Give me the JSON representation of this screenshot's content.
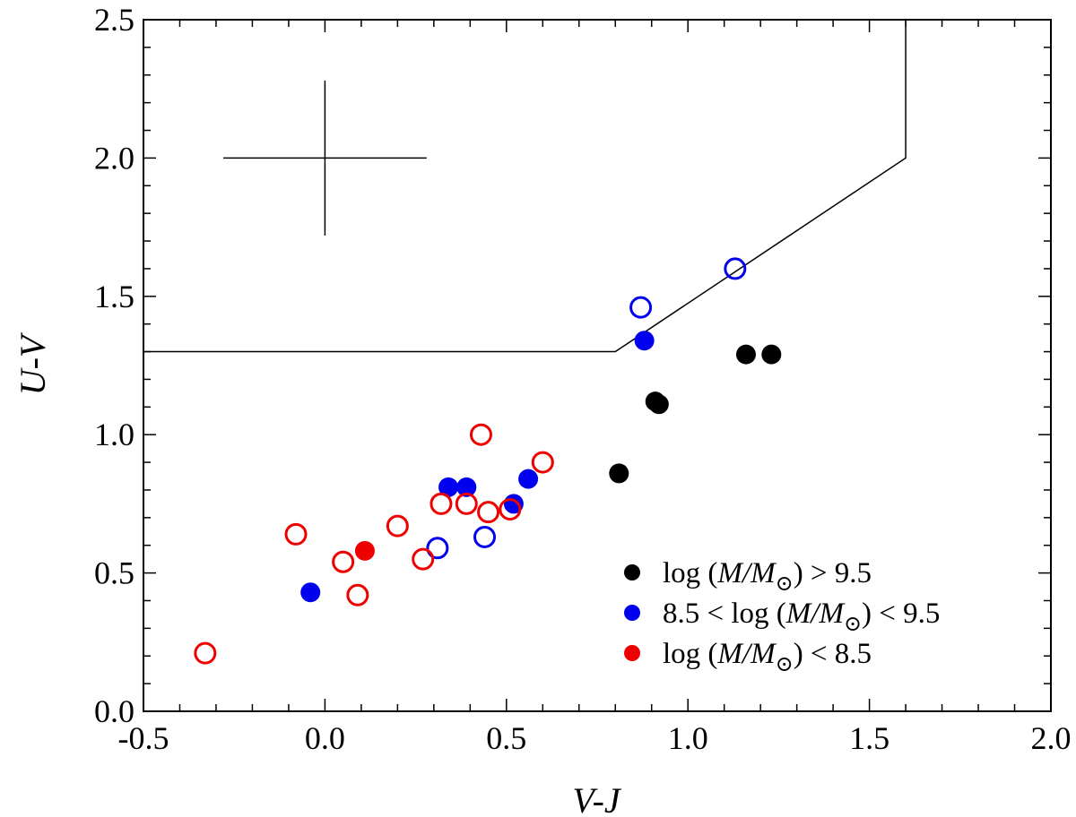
{
  "chart_data": {
    "type": "scatter",
    "xlabel": "V-J",
    "ylabel": "U-V",
    "xlim": [
      -0.5,
      2.0
    ],
    "ylim": [
      0.0,
      2.5
    ],
    "x_ticks": [
      "-0.5",
      "0.0",
      "0.5",
      "1.0",
      "1.5",
      "2.0"
    ],
    "y_ticks": [
      "0.0",
      "0.5",
      "1.0",
      "1.5",
      "2.0",
      "2.5"
    ],
    "colors": {
      "high": "#000000",
      "mid": "#0000ee",
      "low": "#ee0000"
    },
    "series": [
      {
        "name": "log (M/M_sun) > 9.5",
        "color_key": "high",
        "filled": [
          [
            0.81,
            0.86
          ],
          [
            0.91,
            1.12
          ],
          [
            0.92,
            1.11
          ],
          [
            1.16,
            1.29
          ],
          [
            1.23,
            1.29
          ]
        ],
        "open": []
      },
      {
        "name": "8.5 < log (M/M_sun) < 9.5",
        "color_key": "mid",
        "filled": [
          [
            -0.04,
            0.43
          ],
          [
            0.34,
            0.81
          ],
          [
            0.39,
            0.81
          ],
          [
            0.52,
            0.75
          ],
          [
            0.56,
            0.84
          ],
          [
            0.88,
            1.34
          ]
        ],
        "open": [
          [
            0.31,
            0.59
          ],
          [
            0.44,
            0.63
          ],
          [
            0.87,
            1.46
          ],
          [
            1.13,
            1.6
          ]
        ]
      },
      {
        "name": "log (M/M_sun) < 8.5",
        "color_key": "low",
        "filled": [
          [
            0.11,
            0.58
          ]
        ],
        "open": [
          [
            -0.33,
            0.21
          ],
          [
            -0.08,
            0.64
          ],
          [
            0.05,
            0.54
          ],
          [
            0.09,
            0.42
          ],
          [
            0.2,
            0.67
          ],
          [
            0.27,
            0.55
          ],
          [
            0.32,
            0.75
          ],
          [
            0.39,
            0.75
          ],
          [
            0.43,
            1.0
          ],
          [
            0.45,
            0.72
          ],
          [
            0.51,
            0.73
          ],
          [
            0.6,
            0.9
          ]
        ]
      }
    ],
    "selection_boundary": [
      [
        -0.5,
        1.3
      ],
      [
        0.8,
        1.3
      ],
      [
        1.6,
        2.0
      ],
      [
        1.6,
        2.5
      ]
    ],
    "error_bar": {
      "x": 0.0,
      "y": 2.0,
      "xerr": 0.28,
      "yerr": 0.28
    },
    "legend": {
      "location": "lower-right",
      "entries": [
        {
          "color_key": "high",
          "prefix": "log (",
          "var": "M/M",
          "suffix": ") > 9.5"
        },
        {
          "color_key": "mid",
          "prefix": "8.5 < log (",
          "var": "M/M",
          "suffix": ") < 9.5"
        },
        {
          "color_key": "low",
          "prefix": "log (",
          "var": "M/M",
          "suffix": ") < 8.5"
        }
      ],
      "sun_symbol": "⊙"
    }
  }
}
